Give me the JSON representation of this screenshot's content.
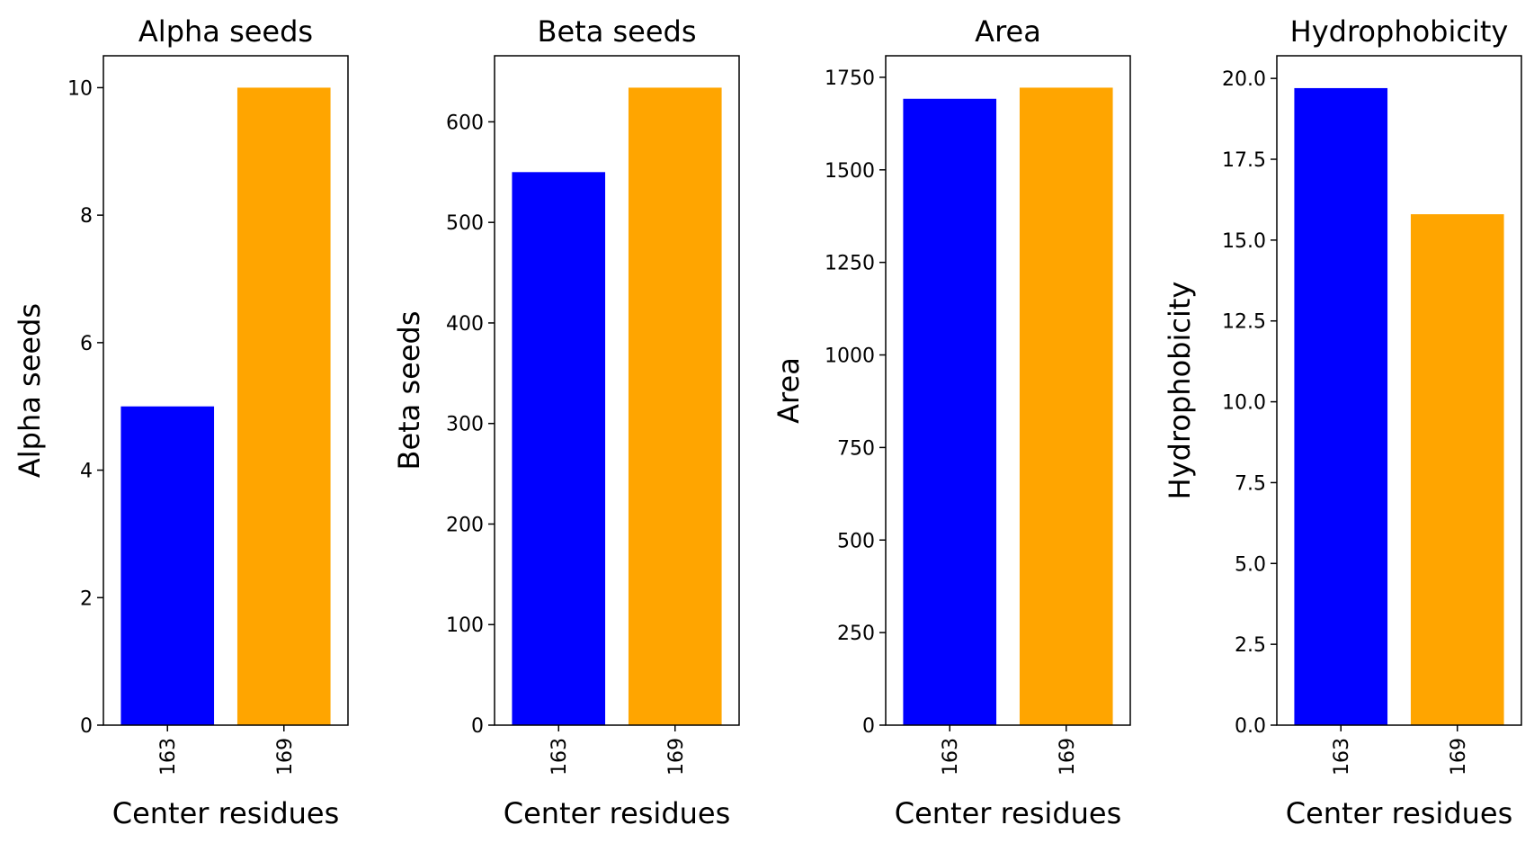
{
  "chart_data": [
    {
      "type": "bar",
      "title": "Alpha seeds",
      "xlabel": "Center residues",
      "ylabel": "Alpha seeds",
      "categories": [
        "163",
        "169"
      ],
      "values": [
        5,
        10
      ],
      "colors": [
        "#0000ff",
        "#ffa500"
      ],
      "ylim": [
        0,
        10.5
      ],
      "yticks": [
        0,
        2,
        4,
        6,
        8,
        10
      ],
      "ytick_labels": [
        "0",
        "2",
        "4",
        "6",
        "8",
        "10"
      ],
      "grid": false,
      "legend": false
    },
    {
      "type": "bar",
      "title": "Beta seeds",
      "xlabel": "Center residues",
      "ylabel": "Beta seeds",
      "categories": [
        "163",
        "169"
      ],
      "values": [
        550,
        634
      ],
      "colors": [
        "#0000ff",
        "#ffa500"
      ],
      "ylim": [
        0,
        665.7
      ],
      "yticks": [
        0,
        100,
        200,
        300,
        400,
        500,
        600
      ],
      "ytick_labels": [
        "0",
        "100",
        "200",
        "300",
        "400",
        "500",
        "600"
      ],
      "grid": false,
      "legend": false
    },
    {
      "type": "bar",
      "title": "Area",
      "xlabel": "Center residues",
      "ylabel": "Area",
      "categories": [
        "163",
        "169"
      ],
      "values": [
        1692,
        1722
      ],
      "colors": [
        "#0000ff",
        "#ffa500"
      ],
      "ylim": [
        0,
        1808.1
      ],
      "yticks": [
        0,
        250,
        500,
        750,
        1000,
        1250,
        1500,
        1750
      ],
      "ytick_labels": [
        "0",
        "250",
        "500",
        "750",
        "1000",
        "1250",
        "1500",
        "1750"
      ],
      "grid": false,
      "legend": false
    },
    {
      "type": "bar",
      "title": "Hydrophobicity",
      "xlabel": "Center residues",
      "ylabel": "Hydrophobicity",
      "categories": [
        "163",
        "169"
      ],
      "values": [
        19.7,
        15.8
      ],
      "colors": [
        "#0000ff",
        "#ffa500"
      ],
      "ylim": [
        0,
        20.7
      ],
      "yticks": [
        0,
        2.5,
        5,
        7.5,
        10,
        12.5,
        15,
        17.5,
        20
      ],
      "ytick_labels": [
        "0.0",
        "2.5",
        "5.0",
        "7.5",
        "10.0",
        "12.5",
        "15.0",
        "17.5",
        "20.0"
      ],
      "grid": false,
      "legend": false
    }
  ]
}
